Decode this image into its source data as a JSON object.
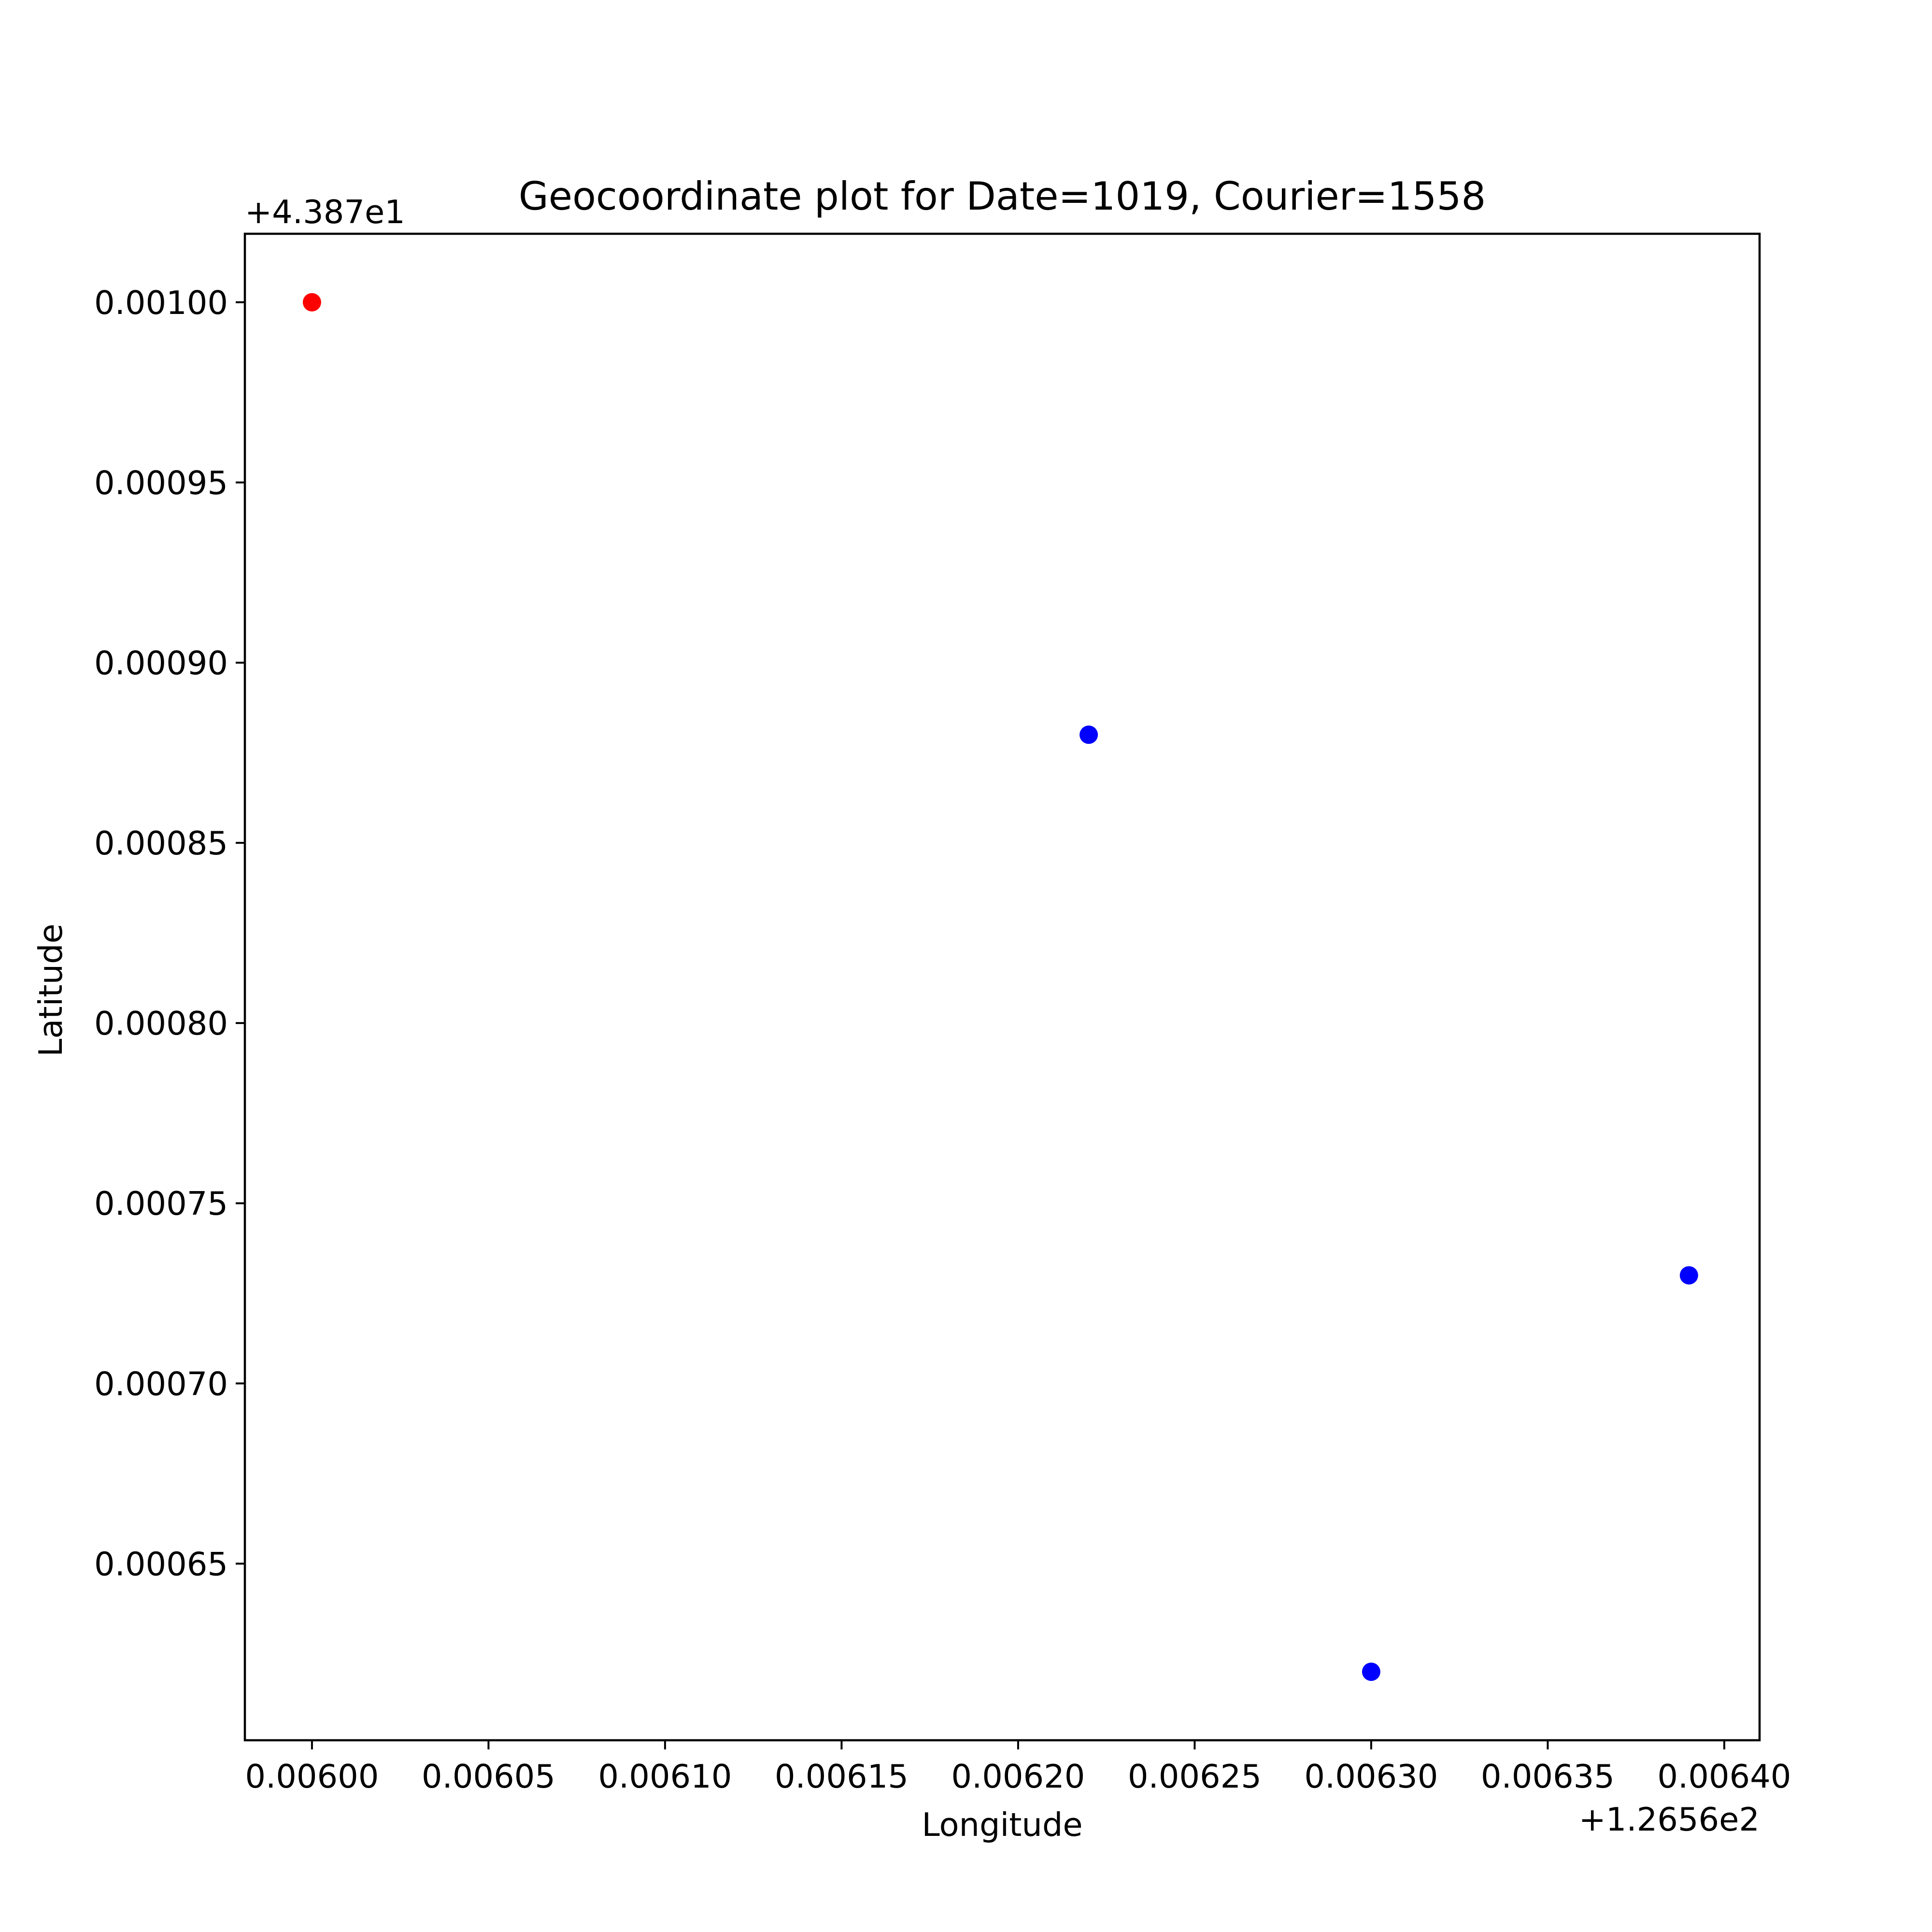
{
  "chart_data": {
    "type": "scatter",
    "title": "Geocoordinate plot for Date=1019, Courier=1558",
    "xlabel": "Longitude",
    "ylabel": "Latitude",
    "x_offset_label": "+1.2656e2",
    "y_offset_label": "+4.387e1",
    "x_ticks": [
      "0.00600",
      "0.00605",
      "0.00610",
      "0.00615",
      "0.00620",
      "0.00625",
      "0.00630",
      "0.00635",
      "0.00640"
    ],
    "x_tick_values": [
      0.006,
      0.00605,
      0.0061,
      0.00615,
      0.0062,
      0.00625,
      0.0063,
      0.00635,
      0.0064
    ],
    "y_ticks": [
      "0.00065",
      "0.00070",
      "0.00075",
      "0.00080",
      "0.00085",
      "0.00090",
      "0.00095",
      "0.00100"
    ],
    "y_tick_values": [
      0.00065,
      0.0007,
      0.00075,
      0.0008,
      0.00085,
      0.0009,
      0.00095,
      0.001
    ],
    "xlim": [
      0.005981,
      0.00641
    ],
    "ylim": [
      0.000601,
      0.001019
    ],
    "grid": false,
    "points": [
      {
        "x": 0.006,
        "y": 0.001,
        "color": "#ff0000"
      },
      {
        "x": 0.00622,
        "y": 0.00088,
        "color": "#0000ff"
      },
      {
        "x": 0.0063,
        "y": 0.00062,
        "color": "#0000ff"
      },
      {
        "x": 0.00639,
        "y": 0.00073,
        "color": "#0000ff"
      }
    ]
  }
}
